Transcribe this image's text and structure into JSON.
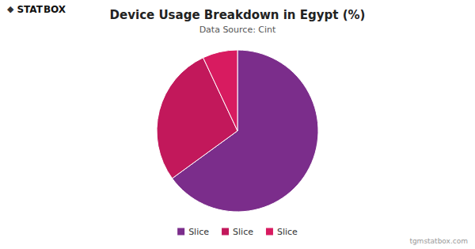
{
  "chart_data": {
    "type": "pie",
    "title": "Device Usage Breakdown in Egypt (%)",
    "subtitle": "Data Source: Cint",
    "categories": [
      "Slice",
      "Slice",
      "Slice"
    ],
    "values": [
      65,
      28,
      7
    ],
    "colors": [
      "#7B2D8B",
      "#C2185B",
      "#D81B60"
    ],
    "legend": "bottom",
    "annotations": [
      "◆",
      "STAT",
      "BOX",
      "tgmstatbox.com"
    ]
  }
}
